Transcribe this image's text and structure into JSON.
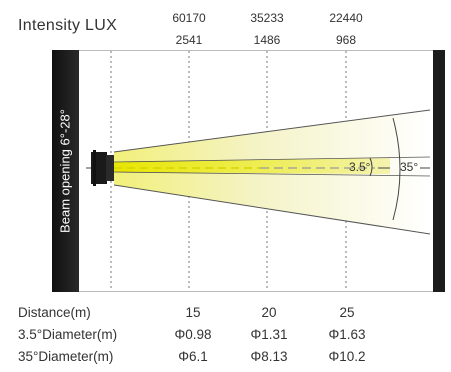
{
  "title": "Intensity LUX",
  "lux_top": [
    "60170",
    "35233",
    "22440"
  ],
  "lux_bottom": [
    "2541",
    "1486",
    "968"
  ],
  "side_label": "Beam opening 6°-28°",
  "angle_inner": "3.5°",
  "angle_outer": "35°",
  "colors": {
    "beam_core": "#e8e600",
    "panel": "#1a1a1a",
    "beam_edge": "#555555"
  },
  "rows": [
    {
      "label": "Distance(m)",
      "values": [
        "15",
        "20",
        "25"
      ]
    },
    {
      "label": "3.5°Diameter(m)",
      "values": [
        "Φ0.98",
        "Φ1.31",
        "Φ1.63"
      ]
    },
    {
      "label": "35°Diameter(m)",
      "values": [
        "Φ6.1",
        "Φ8.13",
        "Φ10.2"
      ]
    }
  ]
}
